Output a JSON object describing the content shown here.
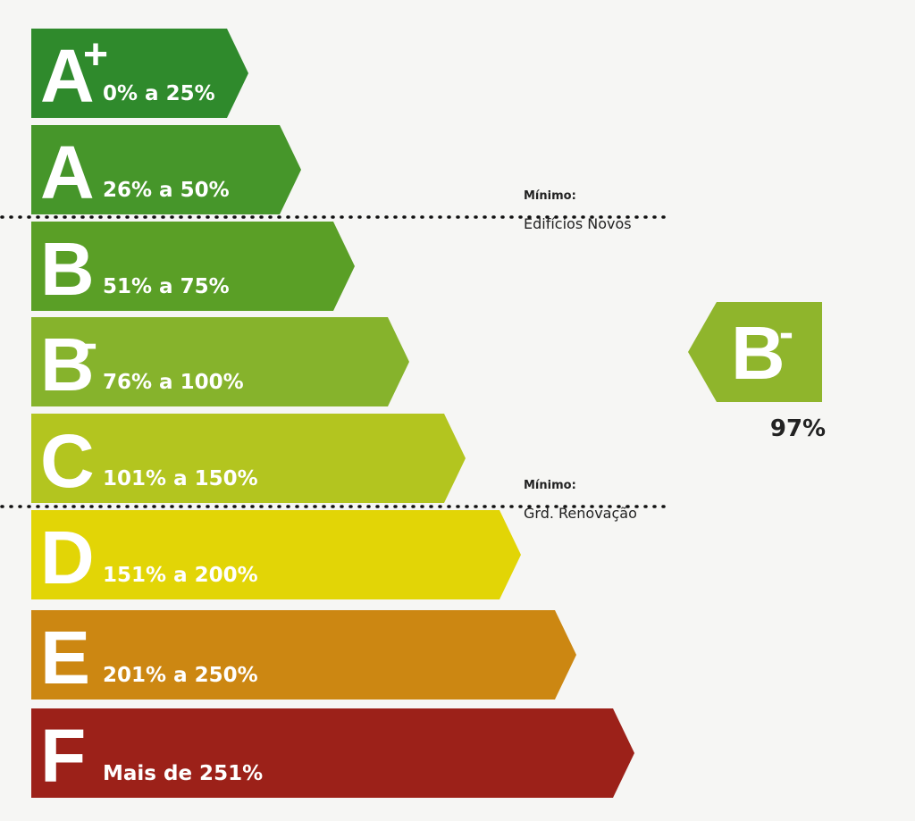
{
  "classes": [
    {
      "letter": "A",
      "sup": "+",
      "range": "0% a 25%"
    },
    {
      "letter": "A",
      "range": "26% a 50%"
    },
    {
      "letter": "B",
      "range": "51% a 75%"
    },
    {
      "letter": "B",
      "sup": "-",
      "range": "76% a 100%"
    },
    {
      "letter": "C",
      "range": "101% a 150%"
    },
    {
      "letter": "D",
      "range": "151% a 200%"
    },
    {
      "letter": "E",
      "range": "201% a 250%"
    },
    {
      "letter": "F",
      "range": "Mais de 251%"
    }
  ],
  "thresholds": [
    {
      "title": "Mínimo:",
      "label": "Edifícios Novos"
    },
    {
      "title": "Mínimo:",
      "label": "Grd. Renovação"
    }
  ],
  "rating": {
    "letter": "B",
    "sup": "-",
    "value": "97%"
  }
}
